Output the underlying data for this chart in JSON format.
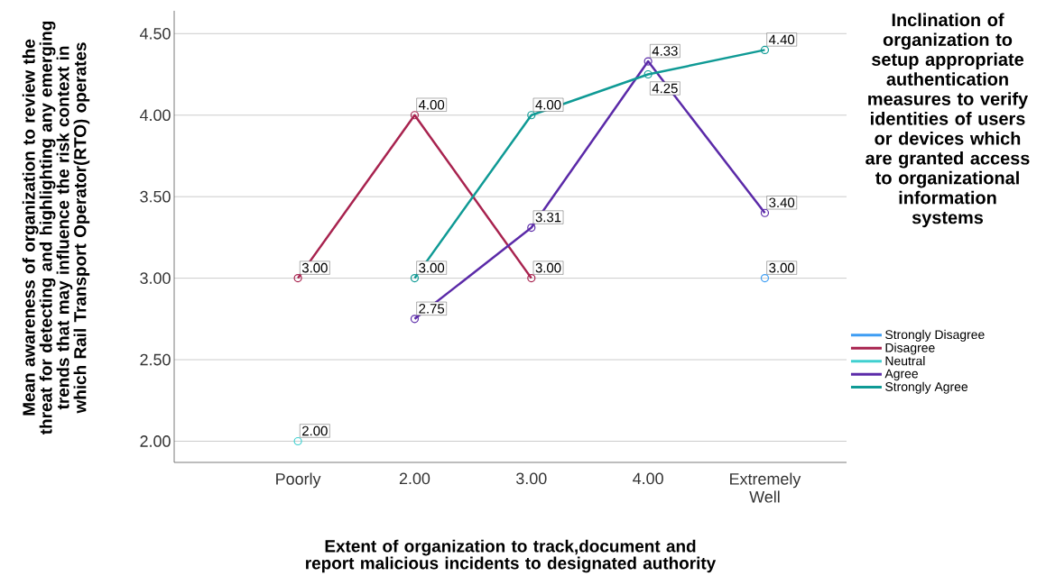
{
  "chart_data": {
    "type": "line",
    "xlabel": "Extent of organization to track,document and report malicious incidents to designated authority",
    "ylabel": "Mean awareness of organization to review the threat for detecting and highlighting any emerging trends that may influence the risk context in which Rail Transport Operator(RTO) operates",
    "legend_title": "Inclination of organization to setup appropriate authentication measures to verify identities of users or devices which are granted access to organizational information systems",
    "categories": [
      "Poorly",
      "2.00",
      "3.00",
      "4.00",
      "Extremely Well"
    ],
    "series": [
      {
        "name": "Strongly Disagree",
        "color": "#3d9df3",
        "values": [
          null,
          null,
          null,
          null,
          3.0
        ],
        "value_labels": [
          null,
          null,
          null,
          null,
          "3.00"
        ]
      },
      {
        "name": "Disagree",
        "color": "#a8234f",
        "values": [
          3.0,
          4.0,
          3.0,
          null,
          null
        ],
        "value_labels": [
          "3.00",
          "4.00",
          "3.00",
          null,
          null
        ]
      },
      {
        "name": "Neutral",
        "color": "#40d0d0",
        "values": [
          2.0,
          null,
          null,
          null,
          null
        ],
        "value_labels": [
          "2.00",
          null,
          null,
          null,
          null
        ]
      },
      {
        "name": "Agree",
        "color": "#5b2aa8",
        "values": [
          null,
          2.75,
          3.31,
          4.33,
          3.4
        ],
        "value_labels": [
          null,
          "2.75",
          "3.31",
          "4.33",
          "3.40"
        ]
      },
      {
        "name": "Strongly Agree",
        "color": "#0f9a95",
        "values": [
          null,
          3.0,
          4.0,
          4.25,
          4.4
        ],
        "value_labels": [
          null,
          "3.00",
          "4.00",
          "4.25",
          "4.40"
        ]
      }
    ],
    "ylim": [
      1.87,
      4.64
    ],
    "yticks": [
      {
        "value": 2,
        "label": "2.00"
      },
      {
        "value": 2.5,
        "label": "2.50"
      },
      {
        "value": 3,
        "label": "3.00"
      },
      {
        "value": 3.5,
        "label": "3.50"
      },
      {
        "value": 4,
        "label": "4.00"
      },
      {
        "value": 4.5,
        "label": "4.50"
      }
    ],
    "grid": "y",
    "legend": "right",
    "marker": "circle",
    "line_style": "solid"
  }
}
